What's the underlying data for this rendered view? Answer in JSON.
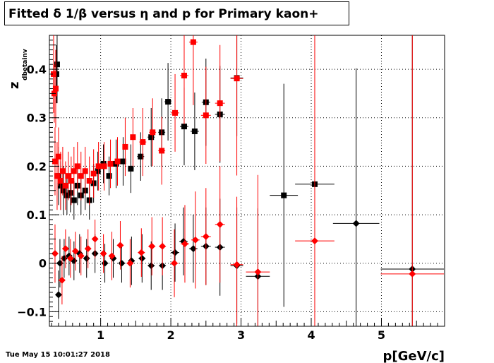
{
  "title": "Fitted δ 1/β versus η and p for Primary kaon+",
  "timestamp": "Tue May 15 10:01:27 2018",
  "chart_data": {
    "type": "scatter",
    "title": "Fitted δ 1/β versus η and p for Primary kaon+",
    "xlabel": "p[GeV/c]",
    "ylabel_main": "z",
    "ylabel_sub": "dbetainv",
    "xlim": [
      0.27,
      5.9
    ],
    "ylim": [
      -0.13,
      0.47
    ],
    "x_ticks": [
      1,
      2,
      3,
      4,
      5
    ],
    "y_ticks": [
      -0.1,
      0,
      0.1,
      0.2,
      0.3,
      0.4
    ],
    "x_tick_labels": [
      "1",
      "2",
      "3",
      "4",
      "5"
    ],
    "y_tick_labels": [
      "−0.1",
      "0",
      "0.1",
      "0.2",
      "0.3",
      "0.4"
    ],
    "grid": true,
    "series": [
      {
        "color": "#000000",
        "marker": "square",
        "points": [
          {
            "x": 0.37,
            "y": 0.39,
            "ex": 0.02,
            "ey": 0.06
          },
          {
            "x": 0.38,
            "y": 0.41,
            "ex": 0.02,
            "ey": 0.08
          },
          {
            "x": 0.4,
            "y": 0.18,
            "ex": 0.02,
            "ey": 0.06
          },
          {
            "x": 0.43,
            "y": 0.16,
            "ex": 0.02,
            "ey": 0.05
          },
          {
            "x": 0.47,
            "y": 0.15,
            "ex": 0.02,
            "ey": 0.05
          },
          {
            "x": 0.52,
            "y": 0.14,
            "ex": 0.02,
            "ey": 0.04
          },
          {
            "x": 0.57,
            "y": 0.145,
            "ex": 0.02,
            "ey": 0.04
          },
          {
            "x": 0.62,
            "y": 0.13,
            "ex": 0.02,
            "ey": 0.04
          },
          {
            "x": 0.67,
            "y": 0.16,
            "ex": 0.02,
            "ey": 0.04
          },
          {
            "x": 0.72,
            "y": 0.14,
            "ex": 0.02,
            "ey": 0.04
          },
          {
            "x": 0.78,
            "y": 0.15,
            "ex": 0.02,
            "ey": 0.04
          },
          {
            "x": 0.84,
            "y": 0.13,
            "ex": 0.02,
            "ey": 0.04
          },
          {
            "x": 0.9,
            "y": 0.165,
            "ex": 0.02,
            "ey": 0.04
          },
          {
            "x": 0.96,
            "y": 0.19,
            "ex": 0.02,
            "ey": 0.04
          },
          {
            "x": 1.04,
            "y": 0.205,
            "ex": 0.03,
            "ey": 0.04
          },
          {
            "x": 1.12,
            "y": 0.18,
            "ex": 0.03,
            "ey": 0.04
          },
          {
            "x": 1.22,
            "y": 0.205,
            "ex": 0.03,
            "ey": 0.05
          },
          {
            "x": 1.32,
            "y": 0.21,
            "ex": 0.04,
            "ey": 0.05
          },
          {
            "x": 1.43,
            "y": 0.195,
            "ex": 0.04,
            "ey": 0.05
          },
          {
            "x": 1.57,
            "y": 0.22,
            "ex": 0.05,
            "ey": 0.05
          },
          {
            "x": 1.72,
            "y": 0.26,
            "ex": 0.05,
            "ey": 0.06
          },
          {
            "x": 1.87,
            "y": 0.27,
            "ex": 0.05,
            "ey": 0.07
          },
          {
            "x": 1.96,
            "y": 0.333,
            "ex": 0.05,
            "ey": 0.08
          },
          {
            "x": 2.19,
            "y": 0.282,
            "ex": 0.06,
            "ey": 0.08
          },
          {
            "x": 2.34,
            "y": 0.272,
            "ex": 0.06,
            "ey": 0.08
          },
          {
            "x": 2.5,
            "y": 0.332,
            "ex": 0.06,
            "ey": 0.09
          },
          {
            "x": 2.7,
            "y": 0.307,
            "ex": 0.07,
            "ey": 0.1
          },
          {
            "x": 2.94,
            "y": 0.382,
            "ex": 0.09,
            "ey": 0.12
          },
          {
            "x": 0.42,
            "y": 0.0,
            "ex": 0.02,
            "ey": 0.05
          },
          {
            "x": 0.4,
            "y": -0.065,
            "ex": 0.02,
            "ey": 0.05
          },
          {
            "x": 0.48,
            "y": 0.01,
            "ex": 0.02,
            "ey": 0.04
          },
          {
            "x": 0.55,
            "y": 0.015,
            "ex": 0.02,
            "ey": 0.04
          },
          {
            "x": 0.62,
            "y": 0.005,
            "ex": 0.02,
            "ey": 0.04
          },
          {
            "x": 0.7,
            "y": 0.02,
            "ex": 0.02,
            "ey": 0.04
          },
          {
            "x": 0.8,
            "y": 0.01,
            "ex": 0.02,
            "ey": 0.04
          },
          {
            "x": 0.92,
            "y": 0.02,
            "ex": 0.02,
            "ey": 0.04
          },
          {
            "x": 1.06,
            "y": 0.0,
            "ex": 0.03,
            "ey": 0.04
          },
          {
            "x": 1.18,
            "y": 0.01,
            "ex": 0.03,
            "ey": 0.04
          },
          {
            "x": 1.3,
            "y": 0.0,
            "ex": 0.04,
            "ey": 0.04
          },
          {
            "x": 1.44,
            "y": 0.005,
            "ex": 0.04,
            "ey": 0.05
          },
          {
            "x": 1.59,
            "y": 0.01,
            "ex": 0.05,
            "ey": 0.05
          },
          {
            "x": 1.72,
            "y": -0.005,
            "ex": 0.05,
            "ey": 0.05
          },
          {
            "x": 1.88,
            "y": -0.005,
            "ex": 0.05,
            "ey": 0.05
          },
          {
            "x": 2.06,
            "y": 0.022,
            "ex": 0.06,
            "ey": 0.06
          },
          {
            "x": 2.18,
            "y": 0.045,
            "ex": 0.06,
            "ey": 0.07
          },
          {
            "x": 2.32,
            "y": 0.03,
            "ex": 0.06,
            "ey": 0.07
          },
          {
            "x": 2.5,
            "y": 0.035,
            "ex": 0.07,
            "ey": 0.08
          },
          {
            "x": 2.7,
            "y": 0.033,
            "ex": 0.07,
            "ey": 0.1
          },
          {
            "x": 2.94,
            "y": -0.005,
            "ex": 0.09,
            "ey": 0.12
          },
          {
            "x": 3.24,
            "y": -0.027,
            "ex": 0.17,
            "ey": 0.14
          },
          {
            "x": 3.61,
            "y": 0.14,
            "ex": 0.2,
            "ey": 0.23
          },
          {
            "x": 4.05,
            "y": 0.163,
            "ex": 0.28,
            "ey": 0.3
          },
          {
            "x": 4.64,
            "y": 0.082,
            "ex": 0.33,
            "ey": 0.32
          },
          {
            "x": 5.44,
            "y": -0.012,
            "ex": 0.45,
            "ey": 0.55
          }
        ]
      },
      {
        "color": "#ff0000",
        "marker": "square",
        "points": [
          {
            "x": 0.33,
            "y": 0.39,
            "ex": 0.02,
            "ey": 0.08
          },
          {
            "x": 0.34,
            "y": 0.35,
            "ex": 0.02,
            "ey": 0.06
          },
          {
            "x": 0.35,
            "y": 0.21,
            "ex": 0.02,
            "ey": 0.07
          },
          {
            "x": 0.36,
            "y": 0.36,
            "ex": 0.02,
            "ey": 0.08
          },
          {
            "x": 0.38,
            "y": 0.18,
            "ex": 0.02,
            "ey": 0.07
          },
          {
            "x": 0.4,
            "y": 0.22,
            "ex": 0.02,
            "ey": 0.06
          },
          {
            "x": 0.43,
            "y": 0.17,
            "ex": 0.02,
            "ey": 0.06
          },
          {
            "x": 0.46,
            "y": 0.19,
            "ex": 0.02,
            "ey": 0.05
          },
          {
            "x": 0.5,
            "y": 0.16,
            "ex": 0.02,
            "ey": 0.05
          },
          {
            "x": 0.54,
            "y": 0.18,
            "ex": 0.02,
            "ey": 0.05
          },
          {
            "x": 0.58,
            "y": 0.17,
            "ex": 0.02,
            "ey": 0.05
          },
          {
            "x": 0.62,
            "y": 0.19,
            "ex": 0.02,
            "ey": 0.05
          },
          {
            "x": 0.67,
            "y": 0.2,
            "ex": 0.02,
            "ey": 0.05
          },
          {
            "x": 0.72,
            "y": 0.18,
            "ex": 0.02,
            "ey": 0.05
          },
          {
            "x": 0.78,
            "y": 0.19,
            "ex": 0.02,
            "ey": 0.05
          },
          {
            "x": 0.84,
            "y": 0.17,
            "ex": 0.02,
            "ey": 0.05
          },
          {
            "x": 0.9,
            "y": 0.185,
            "ex": 0.02,
            "ey": 0.05
          },
          {
            "x": 0.97,
            "y": 0.2,
            "ex": 0.02,
            "ey": 0.05
          },
          {
            "x": 1.05,
            "y": 0.2,
            "ex": 0.03,
            "ey": 0.05
          },
          {
            "x": 1.14,
            "y": 0.205,
            "ex": 0.03,
            "ey": 0.05
          },
          {
            "x": 1.24,
            "y": 0.21,
            "ex": 0.03,
            "ey": 0.05
          },
          {
            "x": 1.35,
            "y": 0.24,
            "ex": 0.04,
            "ey": 0.06
          },
          {
            "x": 1.46,
            "y": 0.26,
            "ex": 0.04,
            "ey": 0.06
          },
          {
            "x": 1.6,
            "y": 0.25,
            "ex": 0.05,
            "ey": 0.07
          },
          {
            "x": 1.74,
            "y": 0.27,
            "ex": 0.05,
            "ey": 0.07
          },
          {
            "x": 1.87,
            "y": 0.232,
            "ex": 0.05,
            "ey": 0.07
          },
          {
            "x": 2.06,
            "y": 0.31,
            "ex": 0.06,
            "ey": 0.08
          },
          {
            "x": 2.19,
            "y": 0.387,
            "ex": 0.06,
            "ey": 0.1
          },
          {
            "x": 2.32,
            "y": 0.456,
            "ex": 0.06,
            "ey": 0.13
          },
          {
            "x": 2.5,
            "y": 0.305,
            "ex": 0.07,
            "ey": 0.1
          },
          {
            "x": 2.7,
            "y": 0.33,
            "ex": 0.07,
            "ey": 0.12
          },
          {
            "x": 2.94,
            "y": 0.381,
            "ex": 0.09,
            "ey": 0.2
          },
          {
            "x": 0.35,
            "y": 0.02,
            "ex": 0.02,
            "ey": 0.06
          },
          {
            "x": 0.45,
            "y": -0.035,
            "ex": 0.02,
            "ey": 0.05
          },
          {
            "x": 0.5,
            "y": 0.03,
            "ex": 0.02,
            "ey": 0.04
          },
          {
            "x": 0.57,
            "y": 0.01,
            "ex": 0.02,
            "ey": 0.04
          },
          {
            "x": 0.64,
            "y": 0.025,
            "ex": 0.02,
            "ey": 0.04
          },
          {
            "x": 0.72,
            "y": 0.015,
            "ex": 0.02,
            "ey": 0.04
          },
          {
            "x": 0.82,
            "y": 0.03,
            "ex": 0.02,
            "ey": 0.04
          },
          {
            "x": 0.92,
            "y": 0.05,
            "ex": 0.02,
            "ey": 0.04
          },
          {
            "x": 1.04,
            "y": 0.02,
            "ex": 0.03,
            "ey": 0.04
          },
          {
            "x": 1.16,
            "y": 0.015,
            "ex": 0.03,
            "ey": 0.05
          },
          {
            "x": 1.28,
            "y": 0.037,
            "ex": 0.04,
            "ey": 0.05
          },
          {
            "x": 1.42,
            "y": 0.0,
            "ex": 0.04,
            "ey": 0.05
          },
          {
            "x": 1.58,
            "y": 0.022,
            "ex": 0.05,
            "ey": 0.05
          },
          {
            "x": 1.73,
            "y": 0.035,
            "ex": 0.05,
            "ey": 0.06
          },
          {
            "x": 1.88,
            "y": 0.035,
            "ex": 0.05,
            "ey": 0.06
          },
          {
            "x": 2.05,
            "y": 0.0,
            "ex": 0.06,
            "ey": 0.07
          },
          {
            "x": 2.2,
            "y": 0.04,
            "ex": 0.06,
            "ey": 0.08
          },
          {
            "x": 2.35,
            "y": 0.048,
            "ex": 0.06,
            "ey": 0.1
          },
          {
            "x": 2.5,
            "y": 0.055,
            "ex": 0.07,
            "ey": 0.1
          },
          {
            "x": 2.7,
            "y": 0.08,
            "ex": 0.07,
            "ey": 0.12
          },
          {
            "x": 2.94,
            "y": -0.003,
            "ex": 0.09,
            "ey": 0.14
          },
          {
            "x": 3.24,
            "y": -0.018,
            "ex": 0.17,
            "ey": 0.2
          },
          {
            "x": 4.05,
            "y": 0.046,
            "ex": 0.28,
            "ey": 0.45
          },
          {
            "x": 5.44,
            "y": -0.022,
            "ex": 0.45,
            "ey": 0.55
          }
        ]
      }
    ]
  }
}
